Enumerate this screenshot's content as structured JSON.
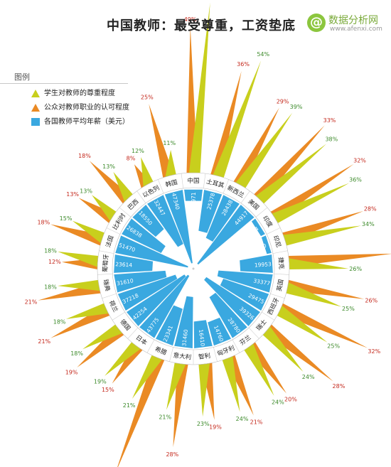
{
  "title": "中国教师：最受尊重，工资垫底",
  "watermark": {
    "logo": "@",
    "name": "数据分析网",
    "url": "www.afenxi.com"
  },
  "legend": {
    "title": "图例",
    "items": [
      {
        "label": "学生对教师的尊重程度",
        "color": "#c8cf1d",
        "shape": "triangle"
      },
      {
        "label": "公众对教师职业的认可程度",
        "color": "#ea8a24",
        "shape": "triangle"
      },
      {
        "label": "各国教师平均年薪（美元）",
        "color": "#3aa8e0",
        "shape": "square"
      }
    ]
  },
  "colors": {
    "student": "#c8cf1d",
    "public": "#ea8a24",
    "salary": "#3aa8e0",
    "student_label": "#3c8a2a",
    "public_label": "#c4281c"
  },
  "chart_data": {
    "type": "radial-bar",
    "series": [
      {
        "name": "学生对教师的尊重程度",
        "unit": "%"
      },
      {
        "name": "公众对教师职业的认可程度",
        "unit": "%"
      },
      {
        "name": "各国教师平均年薪（美元）",
        "unit": "美元"
      }
    ],
    "categories": [
      "中国",
      "土耳其",
      "新西兰",
      "美国",
      "印度",
      "印尼",
      "捷克",
      "英国",
      "西班牙",
      "瑞士",
      "芬兰",
      "匈牙利",
      "智利",
      "意大利",
      "希腊",
      "日本",
      "德国",
      "荷兰",
      "瑞典",
      "葡萄牙",
      "法国",
      "比利时",
      "巴西",
      "以色列",
      "韩国"
    ],
    "student_respect": [
      75,
      54,
      39,
      38,
      36,
      34,
      26,
      25,
      25,
      24,
      24,
      24,
      23,
      21,
      21,
      19,
      18,
      18,
      18,
      18,
      15,
      13,
      13,
      12,
      11
    ],
    "public_approval": [
      49,
      36,
      29,
      33,
      32,
      28,
      35,
      26,
      32,
      28,
      20,
      21,
      19,
      28,
      41,
      15,
      19,
      21,
      21,
      12,
      18,
      13,
      18,
      8,
      25
    ],
    "salary_usd": [
      6971,
      25378,
      28438,
      44917,
      2824,
      2830,
      19953,
      33377,
      29475,
      39326,
      28780,
      14760,
      16410,
      31460,
      23341,
      43775,
      42254,
      37218,
      31610,
      23614,
      51470,
      26838,
      18550,
      32447,
      47340
    ]
  }
}
